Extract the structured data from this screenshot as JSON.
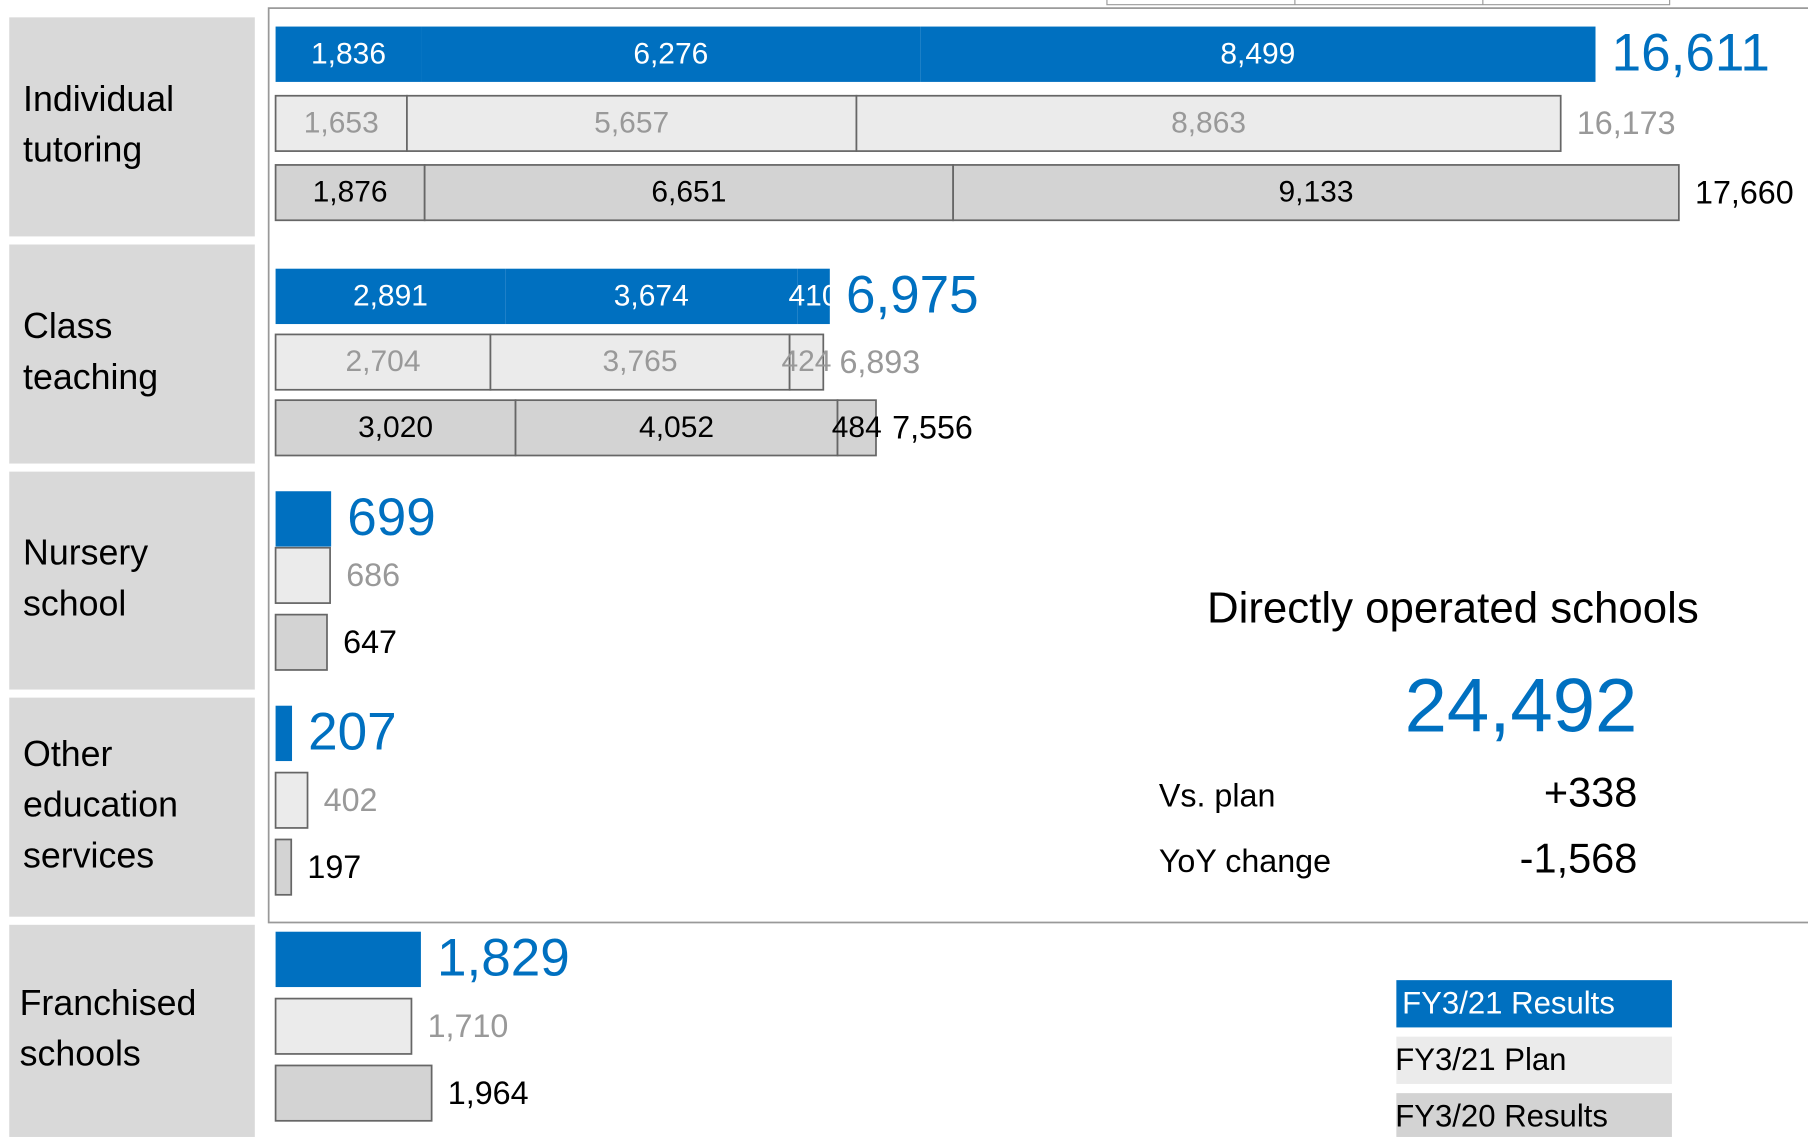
{
  "chart_data": {
    "type": "stacked-bar",
    "series": [
      {
        "name": "FY3/21 Results",
        "color": "#0070c0"
      },
      {
        "name": "FY3/21 Plan",
        "color": "#ebebeb"
      },
      {
        "name": "FY3/20 Results",
        "color": "#d3d3d3"
      }
    ],
    "groups": [
      {
        "label": [
          "Individual",
          "tutoring"
        ],
        "bars": [
          {
            "values": [
              1836,
              6276,
              8499
            ],
            "value_labels": [
              "1,836",
              "6,276",
              "8,499"
            ],
            "total": 16611,
            "total_label": "16,611"
          },
          {
            "values": [
              1653,
              5657,
              8863
            ],
            "value_labels": [
              "1,653",
              "5,657",
              "8,863"
            ],
            "total": 16173,
            "total_label": "16,173"
          },
          {
            "values": [
              1876,
              6651,
              9133
            ],
            "value_labels": [
              "1,876",
              "6,651",
              "9,133"
            ],
            "total": 17660,
            "total_label": "17,660"
          }
        ]
      },
      {
        "label": [
          "Class",
          "teaching"
        ],
        "bars": [
          {
            "values": [
              2891,
              3674,
              410
            ],
            "value_labels": [
              "2,891",
              "3,674",
              "410"
            ],
            "total": 6975,
            "total_label": "6,975"
          },
          {
            "values": [
              2704,
              3765,
              424
            ],
            "value_labels": [
              "2,704",
              "3,765",
              "424"
            ],
            "total": 6893,
            "total_label": "6,893"
          },
          {
            "values": [
              3020,
              4052,
              484
            ],
            "value_labels": [
              "3,020",
              "4,052",
              "484"
            ],
            "total": 7556,
            "total_label": "7,556"
          }
        ]
      },
      {
        "label": [
          "Nursery",
          "school"
        ],
        "bars": [
          {
            "values": [
              699
            ],
            "value_labels": [
              "699"
            ]
          },
          {
            "values": [
              686
            ],
            "value_labels": [
              "686"
            ]
          },
          {
            "values": [
              647
            ],
            "value_labels": [
              "647"
            ]
          }
        ]
      },
      {
        "label": [
          "Other",
          "education",
          "services"
        ],
        "bars": [
          {
            "values": [
              207
            ],
            "value_labels": [
              "207"
            ]
          },
          {
            "values": [
              402
            ],
            "value_labels": [
              "402"
            ]
          },
          {
            "values": [
              197
            ],
            "value_labels": [
              "197"
            ]
          }
        ]
      },
      {
        "label": [
          "Franchised",
          "schools"
        ],
        "bars": [
          {
            "values": [
              1829
            ],
            "value_labels": [
              "1,829"
            ]
          },
          {
            "values": [
              1710
            ],
            "value_labels": [
              "1,710"
            ]
          },
          {
            "values": [
              1964
            ],
            "value_labels": [
              "1,964"
            ]
          }
        ]
      }
    ],
    "summary": {
      "title": "Directly operated schools",
      "value": 24492,
      "value_label": "24,492",
      "rows": [
        {
          "label": "Vs. plan",
          "value": 338,
          "value_label": "+338"
        },
        {
          "label": "YoY change",
          "value": -1568,
          "value_label": "-1,568"
        }
      ]
    }
  }
}
